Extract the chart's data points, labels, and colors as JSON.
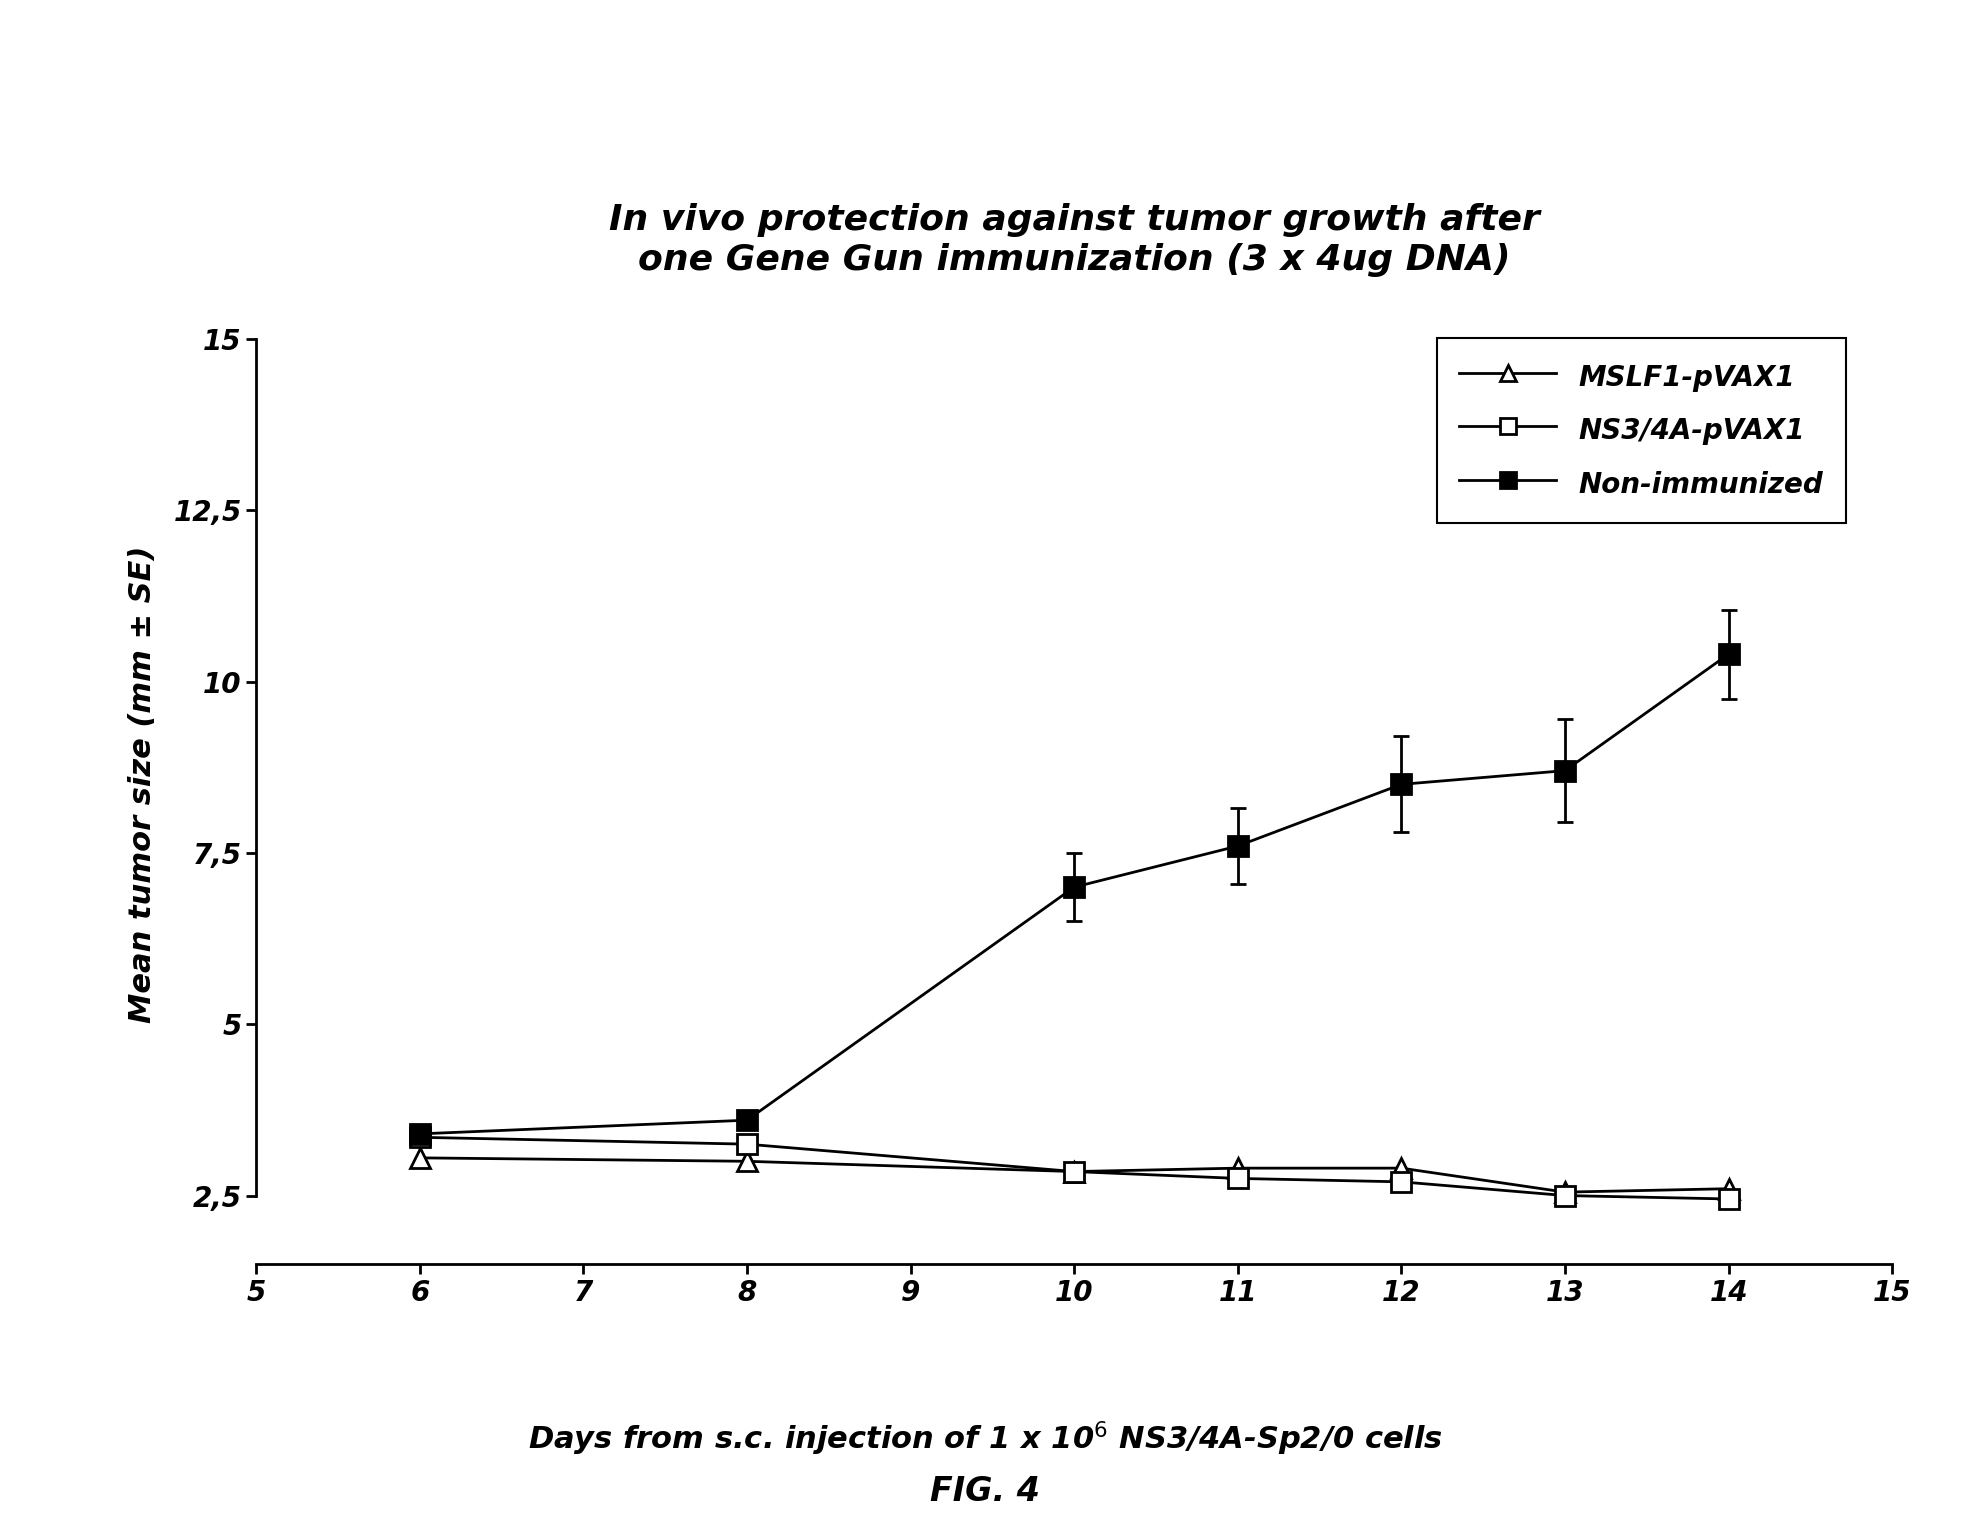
{
  "title_line1": "In vivo protection against tumor growth after",
  "title_line2": "one Gene Gun immunization (3 x 4ug DNA)",
  "ylabel": "Mean tumor size (mm ± SE)",
  "fig_label": "FIG. 4",
  "xlim": [
    5,
    15
  ],
  "ylim": [
    1.5,
    15.5
  ],
  "xticks": [
    5,
    6,
    7,
    8,
    9,
    10,
    11,
    12,
    13,
    14,
    15
  ],
  "xtick_labels": [
    "5",
    "6",
    "7",
    "8",
    "9",
    "10",
    "11",
    "12",
    "13",
    "14",
    "15"
  ],
  "yticks": [
    2.5,
    5.0,
    7.5,
    10.0,
    12.5,
    15.0
  ],
  "ytick_labels": [
    "2,5",
    "5",
    "7,5",
    "10",
    "12,5",
    "15"
  ],
  "series": [
    {
      "label": "MSLF1-pVAX1",
      "x": [
        6,
        8,
        10,
        11,
        12,
        13,
        14
      ],
      "y": [
        3.05,
        3.0,
        2.85,
        2.9,
        2.9,
        2.55,
        2.6
      ],
      "yerr": [
        0,
        0,
        0,
        0,
        0,
        0,
        0
      ],
      "marker": "^",
      "marker_filled": false,
      "color": "black",
      "linewidth": 2.0
    },
    {
      "label": "NS3/4A-pVAX1",
      "x": [
        6,
        8,
        10,
        11,
        12,
        13,
        14
      ],
      "y": [
        3.35,
        3.25,
        2.85,
        2.75,
        2.7,
        2.5,
        2.45
      ],
      "yerr": [
        0,
        0,
        0,
        0,
        0,
        0,
        0
      ],
      "marker": "s",
      "marker_filled": false,
      "color": "black",
      "linewidth": 2.0
    },
    {
      "label": "Non-immunized",
      "x": [
        6,
        8,
        10,
        11,
        12,
        13,
        14
      ],
      "y": [
        3.4,
        3.6,
        7.0,
        7.6,
        8.5,
        8.7,
        10.4
      ],
      "yerr": [
        0.1,
        0.1,
        0.5,
        0.55,
        0.7,
        0.75,
        0.65
      ],
      "marker": "s",
      "marker_filled": true,
      "color": "black",
      "linewidth": 2.0
    }
  ],
  "background_color": "white",
  "title_fontsize": 26,
  "label_fontsize": 22,
  "tick_fontsize": 20,
  "legend_fontsize": 20
}
